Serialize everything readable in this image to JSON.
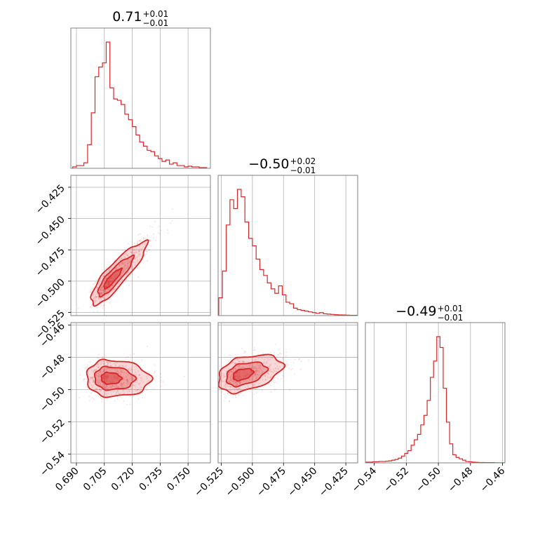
{
  "chart_data": {
    "type": "corner",
    "color": "#d62728",
    "parameters": [
      {
        "title_value": "0.71",
        "title_plus": "+0.01",
        "title_minus": "−0.01",
        "range": [
          0.687,
          0.762
        ],
        "ticks": [
          {
            "value": 0.69,
            "label": "0.690"
          },
          {
            "value": 0.705,
            "label": "0.705"
          },
          {
            "value": 0.72,
            "label": "0.720"
          },
          {
            "value": 0.735,
            "label": "0.735"
          },
          {
            "value": 0.75,
            "label": "0.750"
          }
        ],
        "hist_bins": [
          0.688,
          0.69,
          0.692,
          0.694,
          0.696,
          0.698,
          0.7,
          0.702,
          0.704,
          0.706,
          0.708,
          0.71,
          0.712,
          0.714,
          0.716,
          0.718,
          0.72,
          0.722,
          0.724,
          0.726,
          0.728,
          0.73,
          0.732,
          0.734,
          0.736,
          0.738,
          0.74,
          0.742,
          0.744,
          0.746,
          0.748,
          0.75,
          0.752,
          0.754,
          0.756,
          0.758,
          0.76
        ],
        "hist_counts": [
          0.01,
          0.02,
          0.02,
          0.04,
          0.17,
          0.4,
          0.66,
          0.73,
          0.76,
          0.91,
          0.58,
          0.5,
          0.49,
          0.46,
          0.39,
          0.35,
          0.3,
          0.24,
          0.19,
          0.16,
          0.13,
          0.12,
          0.09,
          0.07,
          0.05,
          0.06,
          0.03,
          0.04,
          0.02,
          0.02,
          0.01,
          0.015,
          0.01,
          0.01,
          0.005,
          0.005
        ]
      },
      {
        "title_value": "−0.50",
        "title_plus": "+0.02",
        "title_minus": "−0.01",
        "range": [
          -0.5275,
          -0.4155
        ],
        "ticks": [
          {
            "value": -0.525,
            "label": "−0.525"
          },
          {
            "value": -0.5,
            "label": "−0.500"
          },
          {
            "value": -0.475,
            "label": "−0.475"
          },
          {
            "value": -0.45,
            "label": "−0.450"
          },
          {
            "value": -0.425,
            "label": "−0.425"
          }
        ],
        "hist_bins": [
          -0.527,
          -0.524,
          -0.521,
          -0.518,
          -0.515,
          -0.512,
          -0.509,
          -0.506,
          -0.503,
          -0.5,
          -0.497,
          -0.494,
          -0.491,
          -0.488,
          -0.485,
          -0.482,
          -0.479,
          -0.476,
          -0.473,
          -0.47,
          -0.467,
          -0.464,
          -0.461,
          -0.458,
          -0.455,
          -0.452,
          -0.449,
          -0.446,
          -0.443,
          -0.44,
          -0.437,
          -0.434,
          -0.431,
          -0.428,
          -0.425,
          -0.422,
          -0.419,
          -0.416
        ],
        "hist_counts": [
          0.12,
          0.3,
          0.61,
          0.78,
          0.72,
          0.85,
          0.8,
          0.63,
          0.52,
          0.47,
          0.38,
          0.31,
          0.27,
          0.22,
          0.18,
          0.15,
          0.2,
          0.14,
          0.09,
          0.08,
          0.05,
          0.04,
          0.035,
          0.03,
          0.025,
          0.02,
          0.015,
          0.02,
          0.012,
          0.01,
          0.008,
          0.006,
          0.005,
          0.004,
          0.003,
          0.002,
          0.002
        ]
      },
      {
        "title_value": "−0.49",
        "title_plus": "+0.01",
        "title_minus": "−0.01",
        "range": [
          -0.5455,
          -0.4585
        ],
        "ticks": [
          {
            "value": -0.54,
            "label": "−0.54"
          },
          {
            "value": -0.52,
            "label": "−0.52"
          },
          {
            "value": -0.5,
            "label": "−0.50"
          },
          {
            "value": -0.48,
            "label": "−0.48"
          },
          {
            "value": -0.46,
            "label": "−0.46"
          }
        ],
        "hist_bins": [
          -0.545,
          -0.543,
          -0.541,
          -0.539,
          -0.537,
          -0.535,
          -0.533,
          -0.531,
          -0.529,
          -0.527,
          -0.525,
          -0.523,
          -0.521,
          -0.519,
          -0.517,
          -0.515,
          -0.513,
          -0.511,
          -0.509,
          -0.507,
          -0.505,
          -0.503,
          -0.501,
          -0.499,
          -0.497,
          -0.495,
          -0.493,
          -0.491,
          -0.489,
          -0.487,
          -0.485,
          -0.483,
          -0.481,
          -0.479,
          -0.477,
          -0.475,
          -0.473,
          -0.471,
          -0.469,
          -0.467,
          -0.465,
          -0.463,
          -0.461,
          -0.459
        ],
        "hist_counts": [
          0.005,
          0.005,
          0.008,
          0.008,
          0.01,
          0.01,
          0.012,
          0.015,
          0.02,
          0.025,
          0.035,
          0.05,
          0.07,
          0.09,
          0.13,
          0.17,
          0.21,
          0.28,
          0.35,
          0.46,
          0.63,
          0.75,
          0.93,
          0.85,
          0.55,
          0.3,
          0.14,
          0.06,
          0.04,
          0.03,
          0.02,
          0.01,
          0.008,
          0.005,
          0.004,
          0.003,
          0.003,
          0.002,
          0.002,
          0.002,
          0.001,
          0.001,
          0.001
        ]
      }
    ],
    "pairs": [
      {
        "x_param": 0,
        "y_param": 1,
        "correlation": 0.85,
        "center": [
          0.708,
          -0.5
        ],
        "spread": [
          0.007,
          0.012
        ],
        "scatter_n": 700,
        "contours": [
          {
            "level": "inner",
            "scale": 0.6,
            "opacity": 0.45
          },
          {
            "level": "middle",
            "scale": 1.2,
            "opacity": 0.3
          },
          {
            "level": "outer",
            "scale": 1.9,
            "opacity": 0.18
          }
        ]
      },
      {
        "x_param": 0,
        "y_param": 2,
        "correlation": -0.05,
        "center": [
          0.707,
          -0.493
        ],
        "spread": [
          0.008,
          0.006
        ],
        "scatter_n": 600,
        "contours": [
          {
            "level": "inner",
            "scale": 0.6,
            "opacity": 0.45
          },
          {
            "level": "middle",
            "scale": 1.2,
            "opacity": 0.3
          },
          {
            "level": "outer",
            "scale": 1.9,
            "opacity": 0.18
          }
        ]
      },
      {
        "x_param": 1,
        "y_param": 2,
        "correlation": 0.35,
        "center": [
          -0.51,
          -0.491
        ],
        "spread": [
          0.012,
          0.006
        ],
        "scatter_n": 600,
        "contours": [
          {
            "level": "inner",
            "scale": 0.6,
            "opacity": 0.45
          },
          {
            "level": "middle",
            "scale": 1.2,
            "opacity": 0.3
          },
          {
            "level": "outer",
            "scale": 1.9,
            "opacity": 0.18
          }
        ]
      }
    ]
  }
}
